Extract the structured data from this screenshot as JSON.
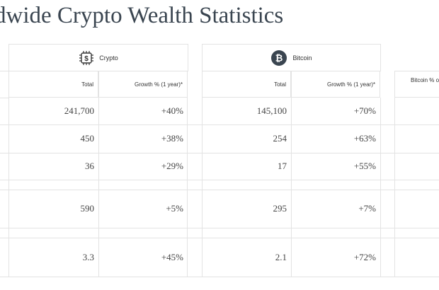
{
  "title": "dwide Crypto Wealth Statistics",
  "crypto": {
    "header_label": "Crypto",
    "col_total": "Total",
    "col_growth": "Growth % (1 year)*",
    "totals": [
      "241,700",
      "450",
      "36",
      "590",
      "3.3"
    ],
    "growth": [
      "+40%",
      "+38%",
      "+29%",
      "+5%",
      "+45%"
    ]
  },
  "bitcoin": {
    "header_label": "Bitcoin",
    "col_total": "Total",
    "col_growth": "Growth % (1 year)*",
    "totals": [
      "145,100",
      "254",
      "17",
      "295",
      "2.1"
    ],
    "growth": [
      "+70%",
      "+63%",
      "+55%",
      "+7%",
      "+72%"
    ]
  },
  "third_col": {
    "col_label": "Bitcoin % o"
  },
  "colors": {
    "title": "#3a4550",
    "bitcoin_badge": "#3a4550",
    "border": "#e3e3e3"
  },
  "icons": {
    "crypto": "dollar-chip-icon",
    "bitcoin": "bitcoin-icon"
  }
}
